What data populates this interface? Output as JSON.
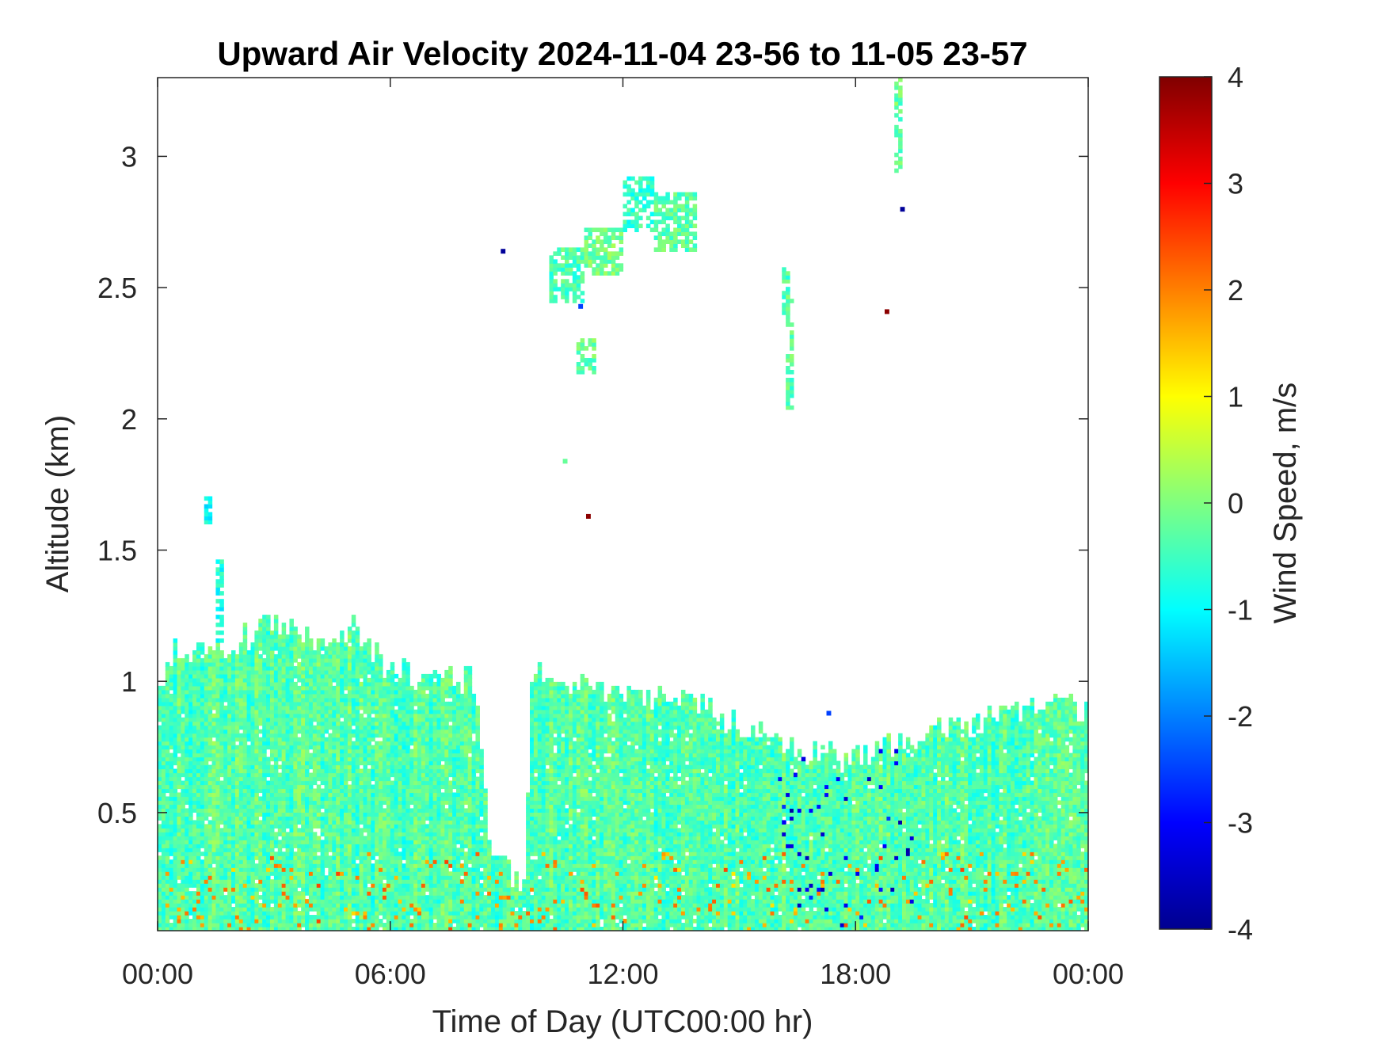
{
  "chart_data": {
    "type": "heatmap",
    "title": "Upward Air Velocity 2024-11-04 23-56 to 11-05 23-57",
    "xlabel": "Time of Day (UTC00:00 hr)",
    "ylabel": "Altitude (km)",
    "colorbar_label": "Wind Speed, m/s",
    "colormap": "jet",
    "xlim_hours": [
      0,
      24
    ],
    "ylim_km": [
      0.05,
      3.3
    ],
    "clim": [
      -4,
      4
    ],
    "x_ticks": [
      {
        "value": 0,
        "label": "00:00"
      },
      {
        "value": 6,
        "label": "06:00"
      },
      {
        "value": 12,
        "label": "12:00"
      },
      {
        "value": 18,
        "label": "18:00"
      },
      {
        "value": 24,
        "label": "00:00"
      }
    ],
    "y_ticks": [
      {
        "value": 0.5,
        "label": "0.5"
      },
      {
        "value": 1,
        "label": "1"
      },
      {
        "value": 1.5,
        "label": "1.5"
      },
      {
        "value": 2,
        "label": "2"
      },
      {
        "value": 2.5,
        "label": "2.5"
      },
      {
        "value": 3,
        "label": "3"
      }
    ],
    "colorbar_ticks": [
      {
        "value": 4,
        "label": "4"
      },
      {
        "value": 3,
        "label": "3"
      },
      {
        "value": 2,
        "label": "2"
      },
      {
        "value": 1,
        "label": "1"
      },
      {
        "value": 0,
        "label": "0"
      },
      {
        "value": -1,
        "label": "-1"
      },
      {
        "value": -2,
        "label": "-2"
      },
      {
        "value": -3,
        "label": "-3"
      },
      {
        "value": -4,
        "label": "-4"
      }
    ],
    "boundary_layer_top_km": [
      [
        0.0,
        0.95
      ],
      [
        0.4,
        1.1
      ],
      [
        1.5,
        1.13
      ],
      [
        2.3,
        1.17
      ],
      [
        3.0,
        1.25
      ],
      [
        4.0,
        1.15
      ],
      [
        5.0,
        1.2
      ],
      [
        6.0,
        1.05
      ],
      [
        7.0,
        1.0
      ],
      [
        8.2,
        1.0
      ],
      [
        8.6,
        0.32
      ],
      [
        9.0,
        0.27
      ],
      [
        9.45,
        0.2
      ],
      [
        9.65,
        1.05
      ],
      [
        11.5,
        0.95
      ],
      [
        12.5,
        0.93
      ],
      [
        14.0,
        0.9
      ],
      [
        15.5,
        0.8
      ],
      [
        16.5,
        0.75
      ],
      [
        18.0,
        0.7
      ],
      [
        19.0,
        0.75
      ],
      [
        20.0,
        0.8
      ],
      [
        21.0,
        0.85
      ],
      [
        22.0,
        0.9
      ],
      [
        24.0,
        0.9
      ]
    ],
    "noise_amplitude_ms": 0.45,
    "bias_ms": -0.35,
    "elevated_layers": [
      {
        "t0": 10.2,
        "t1": 11.0,
        "z0": 2.45,
        "z1": 2.65,
        "mean": -0.4
      },
      {
        "t0": 11.0,
        "t1": 12.0,
        "z0": 2.55,
        "z1": 2.72,
        "mean": -0.1
      },
      {
        "t0": 12.0,
        "t1": 12.8,
        "z0": 2.72,
        "z1": 2.92,
        "mean": -0.6
      },
      {
        "t0": 12.8,
        "t1": 13.9,
        "z0": 2.65,
        "z1": 2.85,
        "mean": -0.3
      },
      {
        "t0": 10.8,
        "t1": 11.3,
        "z0": 2.18,
        "z1": 2.3,
        "mean": -0.2
      },
      {
        "t0": 16.15,
        "t1": 16.25,
        "z0": 2.4,
        "z1": 2.57,
        "mean": -0.4
      },
      {
        "t0": 16.25,
        "t1": 16.38,
        "z0": 2.05,
        "z1": 2.5,
        "mean": -0.3
      },
      {
        "t0": 19.05,
        "t1": 19.15,
        "z0": 2.95,
        "z1": 3.3,
        "mean": -0.2
      },
      {
        "t0": 1.25,
        "t1": 1.4,
        "z0": 1.6,
        "z1": 1.7,
        "mean": -1.0
      },
      {
        "t0": 1.5,
        "t1": 1.68,
        "z0": 1.15,
        "z1": 1.46,
        "mean": -0.8
      }
    ],
    "isolated_pixels": [
      {
        "t": 8.9,
        "z": 2.64,
        "value": -3.8
      },
      {
        "t": 11.1,
        "z": 1.63,
        "value": 3.9
      },
      {
        "t": 10.5,
        "z": 1.84,
        "value": -0.2
      },
      {
        "t": 18.8,
        "z": 2.41,
        "value": 3.9
      },
      {
        "t": 19.2,
        "z": 2.8,
        "value": -3.8
      },
      {
        "t": 10.9,
        "z": 2.43,
        "value": -2.5
      },
      {
        "t": 17.3,
        "z": 0.88,
        "value": -2.5
      }
    ]
  }
}
